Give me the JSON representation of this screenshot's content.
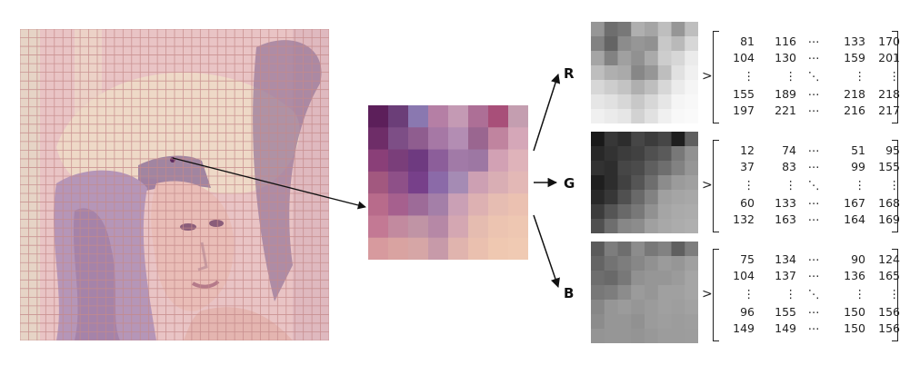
{
  "channels": [
    {
      "label": "R",
      "matrix": [
        [
          "81",
          "116",
          "⋯",
          "133",
          "170"
        ],
        [
          "104",
          "130",
          "⋯",
          "159",
          "201"
        ],
        [
          "⋮",
          "⋮",
          "⋱",
          "⋮",
          "⋮"
        ],
        [
          "155",
          "189",
          "⋯",
          "218",
          "218"
        ],
        [
          "197",
          "221",
          "⋯",
          "216",
          "217"
        ]
      ]
    },
    {
      "label": "G",
      "matrix": [
        [
          "12",
          "74",
          "⋯",
          "51",
          "95"
        ],
        [
          "37",
          "83",
          "⋯",
          "99",
          "155"
        ],
        [
          "⋮",
          "⋮",
          "⋱",
          "⋮",
          "⋮"
        ],
        [
          "60",
          "133",
          "⋯",
          "167",
          "168"
        ],
        [
          "132",
          "163",
          "⋯",
          "164",
          "169"
        ]
      ]
    },
    {
      "label": "B",
      "matrix": [
        [
          "75",
          "134",
          "⋯",
          "90",
          "124"
        ],
        [
          "104",
          "137",
          "⋯",
          "136",
          "165"
        ],
        [
          "⋮",
          "⋮",
          "⋱",
          "⋮",
          "⋮"
        ],
        [
          "96",
          "155",
          "⋯",
          "150",
          "156"
        ],
        [
          "149",
          "149",
          "⋯",
          "150",
          "156"
        ]
      ]
    }
  ],
  "matrix_arrow": ">",
  "colors": {
    "grid_line": "#c58a8a",
    "arrow": "#111111"
  },
  "zoom_block_colors": [
    [
      "#5c1f5a",
      "#6b3e78",
      "#8a78b0",
      "#b57fa5",
      "#c49ab4",
      "#ad6f96",
      "#a84f79",
      "#c49eb0"
    ],
    [
      "#6e2d68",
      "#7d4e86",
      "#8f5d8f",
      "#a678a5",
      "#b38db3",
      "#9a6690",
      "#c0849f",
      "#d5a7b8"
    ],
    [
      "#8a3f78",
      "#7a3e7a",
      "#6e3a80",
      "#8c5e9a",
      "#a17aa7",
      "#9d77a3",
      "#d2a1b4",
      "#dfb3ba"
    ],
    [
      "#a2587f",
      "#8e5088",
      "#77408a",
      "#8b6aa8",
      "#a58bb4",
      "#cda0b3",
      "#d9aeb4",
      "#e3b8b6"
    ],
    [
      "#b86b8b",
      "#a6608e",
      "#9d6b98",
      "#a47fa8",
      "#caa0b5",
      "#ddb1b2",
      "#e6bdb2",
      "#ebc1b1"
    ],
    [
      "#c37994",
      "#c28a9f",
      "#c094a5",
      "#b688a6",
      "#d4a7b2",
      "#e5bcb0",
      "#ecc4b1",
      "#eec7b2"
    ],
    [
      "#d79a9e",
      "#d9a3a1",
      "#d6a6a6",
      "#c79aa9",
      "#e0b4ae",
      "#eac0af",
      "#efc8b1",
      "#f0cab3"
    ]
  ],
  "gray_levels": {
    "R": [
      [
        150,
        110,
        120,
        175,
        165,
        190,
        150,
        190
      ],
      [
        130,
        100,
        140,
        150,
        145,
        200,
        185,
        215
      ],
      [
        165,
        130,
        160,
        145,
        170,
        205,
        215,
        235
      ],
      [
        190,
        175,
        170,
        135,
        150,
        190,
        225,
        240
      ],
      [
        215,
        205,
        195,
        175,
        190,
        215,
        235,
        245
      ],
      [
        230,
        225,
        215,
        200,
        215,
        230,
        245,
        248
      ],
      [
        240,
        235,
        230,
        210,
        225,
        240,
        248,
        250
      ]
    ],
    "G": [
      [
        25,
        55,
        45,
        70,
        60,
        70,
        30,
        95
      ],
      [
        40,
        50,
        60,
        65,
        80,
        90,
        120,
        145
      ],
      [
        50,
        45,
        70,
        75,
        95,
        110,
        130,
        150
      ],
      [
        30,
        45,
        65,
        85,
        110,
        140,
        155,
        160
      ],
      [
        40,
        55,
        80,
        105,
        130,
        160,
        165,
        168
      ],
      [
        60,
        85,
        105,
        120,
        145,
        165,
        170,
        172
      ],
      [
        80,
        110,
        135,
        140,
        160,
        168,
        172,
        175
      ]
    ],
    "B": [
      [
        90,
        125,
        110,
        140,
        120,
        130,
        95,
        125
      ],
      [
        100,
        115,
        125,
        135,
        145,
        155,
        150,
        160
      ],
      [
        110,
        105,
        120,
        145,
        150,
        150,
        155,
        165
      ],
      [
        120,
        125,
        140,
        155,
        150,
        160,
        160,
        165
      ],
      [
        135,
        150,
        155,
        150,
        155,
        160,
        158,
        162
      ],
      [
        140,
        150,
        150,
        145,
        155,
        158,
        156,
        158
      ],
      [
        148,
        150,
        150,
        148,
        152,
        156,
        156,
        157
      ]
    ]
  }
}
